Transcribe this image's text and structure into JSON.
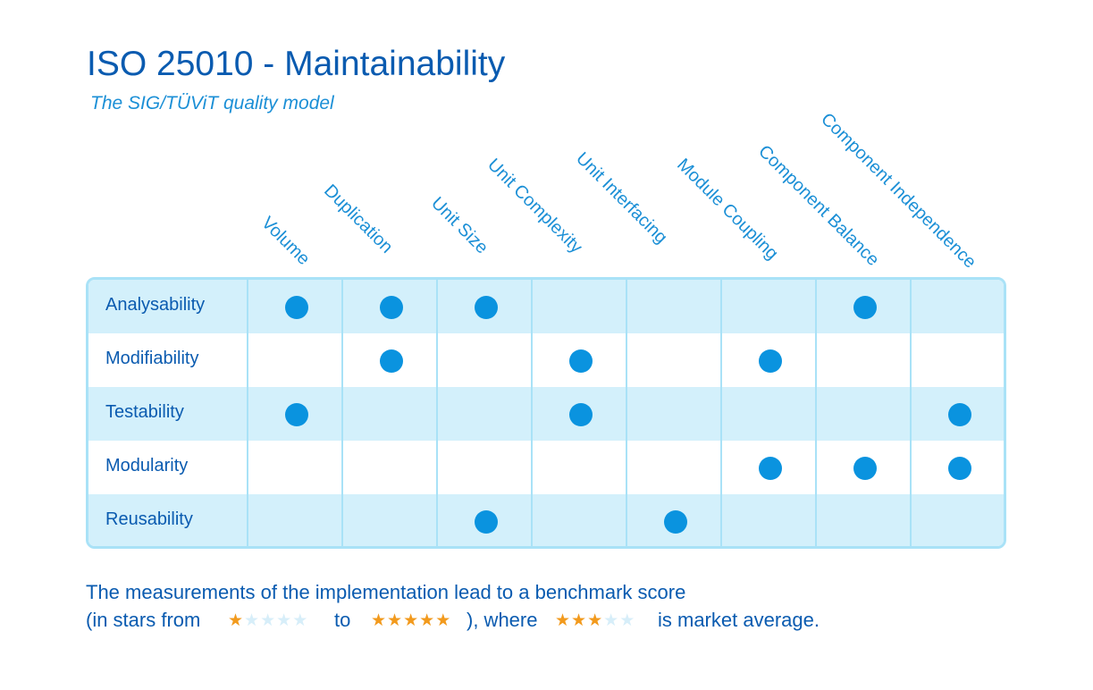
{
  "header": {
    "title": "ISO 25010 - Maintainability",
    "subtitle": "The SIG/TÜViT quality model"
  },
  "columns": [
    "Volume",
    "Duplication",
    "Unit Size",
    "Unit Complexity",
    "Unit Interfacing",
    "Module Coupling",
    "Component Balance",
    "Component Independence"
  ],
  "rows": [
    {
      "label": "Analysability",
      "marks": [
        1,
        1,
        1,
        0,
        0,
        0,
        1,
        0
      ]
    },
    {
      "label": "Modifiability",
      "marks": [
        0,
        1,
        0,
        1,
        0,
        1,
        0,
        0
      ]
    },
    {
      "label": "Testability",
      "marks": [
        1,
        0,
        0,
        1,
        0,
        0,
        0,
        1
      ]
    },
    {
      "label": "Modularity",
      "marks": [
        0,
        0,
        0,
        0,
        0,
        1,
        1,
        1
      ]
    },
    {
      "label": "Reusability",
      "marks": [
        0,
        0,
        1,
        0,
        1,
        0,
        0,
        0
      ]
    }
  ],
  "footer": {
    "line1": "The measurements of the implementation lead to a benchmark score",
    "line2_a": "(in stars from",
    "line2_b": "to",
    "line2_c": "), where",
    "line2_d": "is market average.",
    "stars_min": 1,
    "stars_max": 5,
    "stars_avg": 3,
    "stars_total": 5
  },
  "colors": {
    "title": "#0a5bb0",
    "accent": "#1b8fd6",
    "dot": "#0a93df",
    "row_shade": "#d3f0fb",
    "grid_line": "#a9e2f7",
    "star_on": "#f29a1d",
    "star_off": "#d7eef9"
  }
}
